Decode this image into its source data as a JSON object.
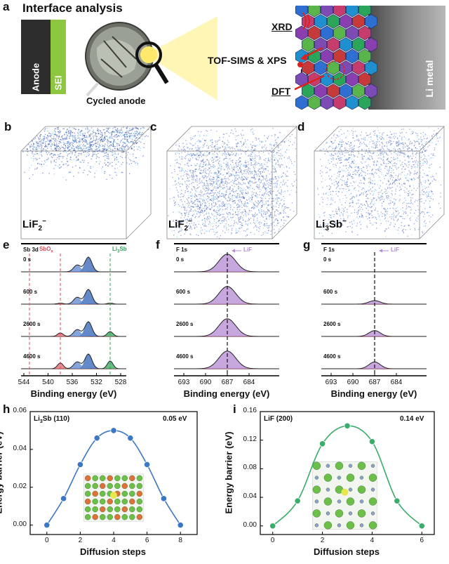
{
  "panel_a": {
    "letter": "a",
    "title": "Interface analysis",
    "anode_label": "Anode",
    "sei_label": "SEI",
    "cycled_label": "Cycled anode",
    "xrd": "XRD",
    "tofsims": "TOF-SIMS & XPS",
    "dft": "DFT",
    "li_ion": "Li",
    "li_ion_sup": "+",
    "li_metal": "Li metal",
    "colors": {
      "anode": "#2d2d2d",
      "sei": "#8dc63f",
      "arrow": "#d9231e",
      "glow": "#ffe96b"
    }
  },
  "cubes": [
    {
      "letter": "b",
      "label": "LiF",
      "sub": "2",
      "sup": "−",
      "density": "surface"
    },
    {
      "letter": "c",
      "label": "LiF",
      "sub": "2",
      "sup": "−",
      "density": "dense"
    },
    {
      "letter": "d",
      "label": "Li",
      "sub": "3",
      "label2": "Sb",
      "sup": "−",
      "density": "medium"
    }
  ],
  "xps": [
    {
      "letter": "e",
      "region": "Sb 3d",
      "times": [
        "0 s",
        "600 s",
        "2600 s",
        "4600 s"
      ],
      "annot1": "SbO",
      "annot1_sub": "x",
      "annot2": "Li",
      "annot2_sub": "3",
      "annot2b": "Sb",
      "xticks": [
        "544",
        "540",
        "536",
        "532",
        "528"
      ],
      "xlabel": "Binding energy (eV)"
    },
    {
      "letter": "f",
      "region": "F 1s",
      "times": [
        "0 s",
        "600 s",
        "2600 s",
        "4600 s"
      ],
      "annot1": "LiF",
      "xticks": [
        "693",
        "690",
        "687",
        "684"
      ],
      "xlabel": "Binding energy (eV)"
    },
    {
      "letter": "g",
      "region": "F 1s",
      "times": [
        "0 s",
        "600 s",
        "2600 s",
        "4600 s"
      ],
      "annot1": "LiF",
      "xticks": [
        "693",
        "690",
        "687",
        "684"
      ],
      "xlabel": "Binding energy (eV)"
    }
  ],
  "chart_data": [
    {
      "type": "line",
      "letter": "h",
      "title": "Li3Sb (110)",
      "title_main": "Li",
      "title_sub": "3",
      "title_rest": "Sb (110)",
      "annotation": "0.05 eV",
      "x": [
        0,
        1,
        2,
        3,
        4,
        5,
        6,
        7,
        8
      ],
      "y": [
        0.0,
        0.014,
        0.032,
        0.046,
        0.05,
        0.046,
        0.032,
        0.014,
        0.0
      ],
      "xlabel": "Diffusion steps",
      "ylabel": "Energy barrier (eV)",
      "xlim": [
        -1,
        9
      ],
      "ylim": [
        -0.005,
        0.06
      ],
      "xticks": [
        "0",
        "2",
        "4",
        "6",
        "8"
      ],
      "yticks": [
        "0.00",
        "0.02",
        "0.04",
        "0.06"
      ],
      "color": "#3b78c4"
    },
    {
      "type": "line",
      "letter": "i",
      "title": "LiF (200)",
      "annotation": "0.14 eV",
      "x": [
        0,
        1,
        2,
        3,
        4,
        5,
        6
      ],
      "y": [
        0.0,
        0.035,
        0.115,
        0.14,
        0.118,
        0.035,
        0.0
      ],
      "xlabel": "Diffusion steps",
      "ylabel": "Energy barrier (eV)",
      "xlim": [
        -0.5,
        6.5
      ],
      "ylim": [
        -0.012,
        0.16
      ],
      "xticks": [
        "0",
        "2",
        "4",
        "6"
      ],
      "yticks": [
        "0.00",
        "0.04",
        "0.08",
        "0.12",
        "0.16"
      ],
      "color": "#3aad6b"
    }
  ]
}
